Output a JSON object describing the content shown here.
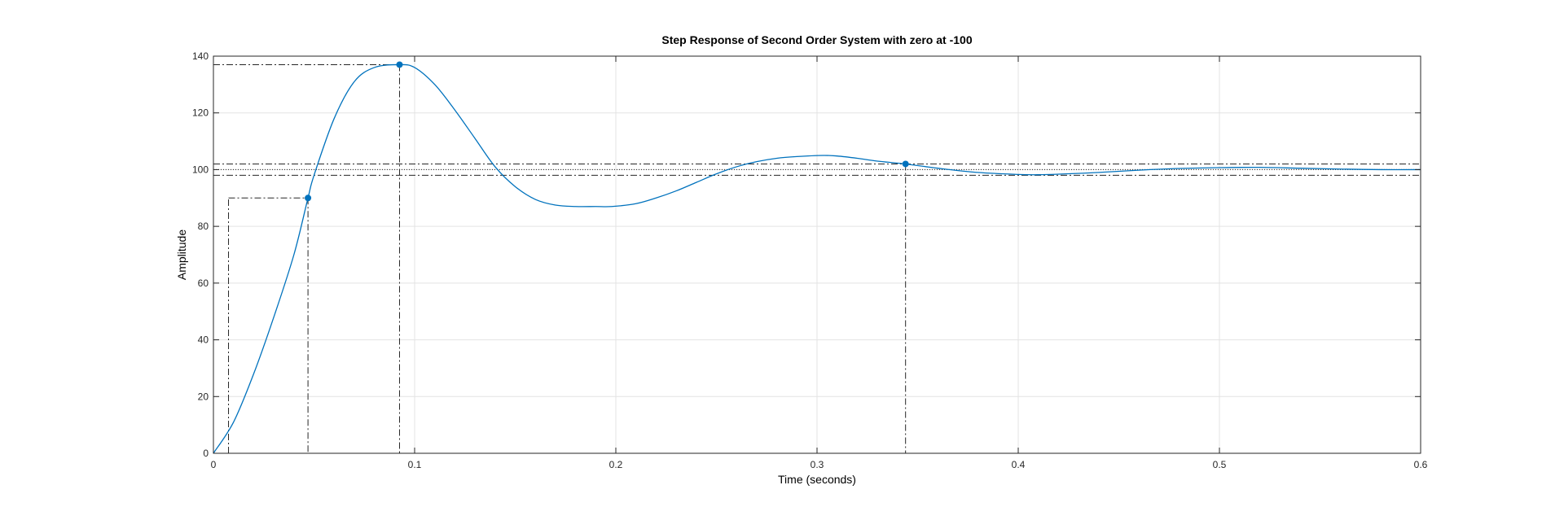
{
  "chart_data": {
    "type": "line",
    "title": "Step Response of Second Order System with zero at -100",
    "xlabel": "Time (seconds)",
    "ylabel": "Amplitude",
    "xlim": [
      0,
      0.6
    ],
    "ylim": [
      0,
      140
    ],
    "xticks": [
      0,
      0.1,
      0.2,
      0.3,
      0.4,
      0.5,
      0.6
    ],
    "xtick_labels": [
      "0",
      "0.1",
      "0.2",
      "0.3",
      "0.4",
      "0.5",
      "0.6"
    ],
    "yticks": [
      0,
      20,
      40,
      60,
      80,
      100,
      120,
      140
    ],
    "ytick_labels": [
      "0",
      "20",
      "40",
      "60",
      "80",
      "100",
      "120",
      "140"
    ],
    "grid": true,
    "series": [
      {
        "color": "#0072bd",
        "x": [
          0,
          0.01,
          0.02,
          0.03,
          0.04,
          0.047,
          0.05,
          0.06,
          0.07,
          0.08,
          0.0925,
          0.1,
          0.11,
          0.12,
          0.13,
          0.14,
          0.15,
          0.16,
          0.17,
          0.18,
          0.19,
          0.198,
          0.21,
          0.22,
          0.23,
          0.24,
          0.25,
          0.26,
          0.27,
          0.28,
          0.29,
          0.303,
          0.31,
          0.32,
          0.33,
          0.344,
          0.36,
          0.38,
          0.4,
          0.41,
          0.42,
          0.44,
          0.46,
          0.48,
          0.5,
          0.52,
          0.54,
          0.56,
          0.58,
          0.6
        ],
        "y": [
          0,
          11,
          28,
          48,
          70,
          90,
          98,
          118,
          131,
          136,
          137,
          136,
          130,
          121,
          111,
          101,
          94,
          89.5,
          87.5,
          87,
          87,
          87,
          88,
          90,
          92.5,
          95.5,
          98.5,
          101,
          102.8,
          104,
          104.6,
          105,
          104.8,
          104,
          103,
          102,
          100.5,
          99,
          98.3,
          98.2,
          98.4,
          99,
          99.8,
          100.4,
          100.7,
          100.8,
          100.5,
          100.2,
          100,
          100
        ]
      }
    ],
    "characteristics": {
      "rise_time_start": {
        "t": 0.0075,
        "y": 10
      },
      "rise_time_end": {
        "t": 0.047,
        "y": 90
      },
      "peak": {
        "t": 0.0925,
        "y": 137
      },
      "settling": {
        "t": 0.344,
        "y": 102
      },
      "steady_state": 100,
      "settling_band": [
        98,
        102
      ]
    }
  }
}
